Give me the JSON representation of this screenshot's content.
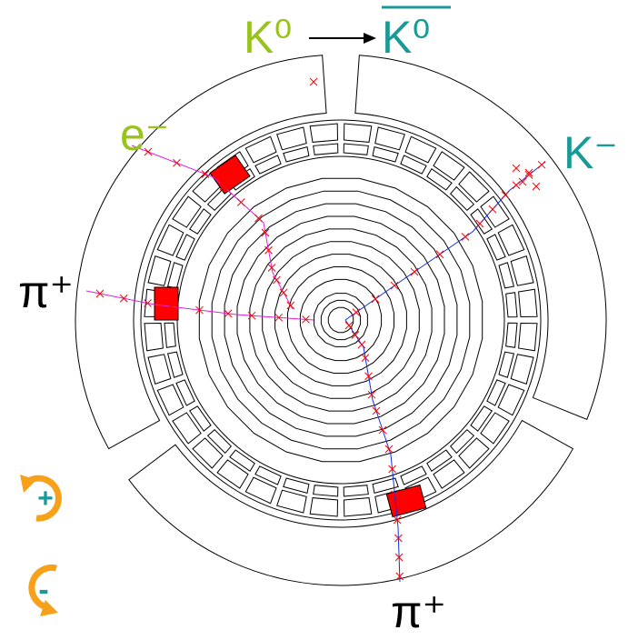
{
  "title": {
    "initial": "K⁰",
    "final": "K⁰"
  },
  "labels": {
    "electron": "e⁻",
    "kaon": "K⁻",
    "pion_left": "π⁺",
    "pion_bottom": "π⁺"
  },
  "controls": {
    "rotate_plus": "+",
    "rotate_minus": "-"
  }
}
